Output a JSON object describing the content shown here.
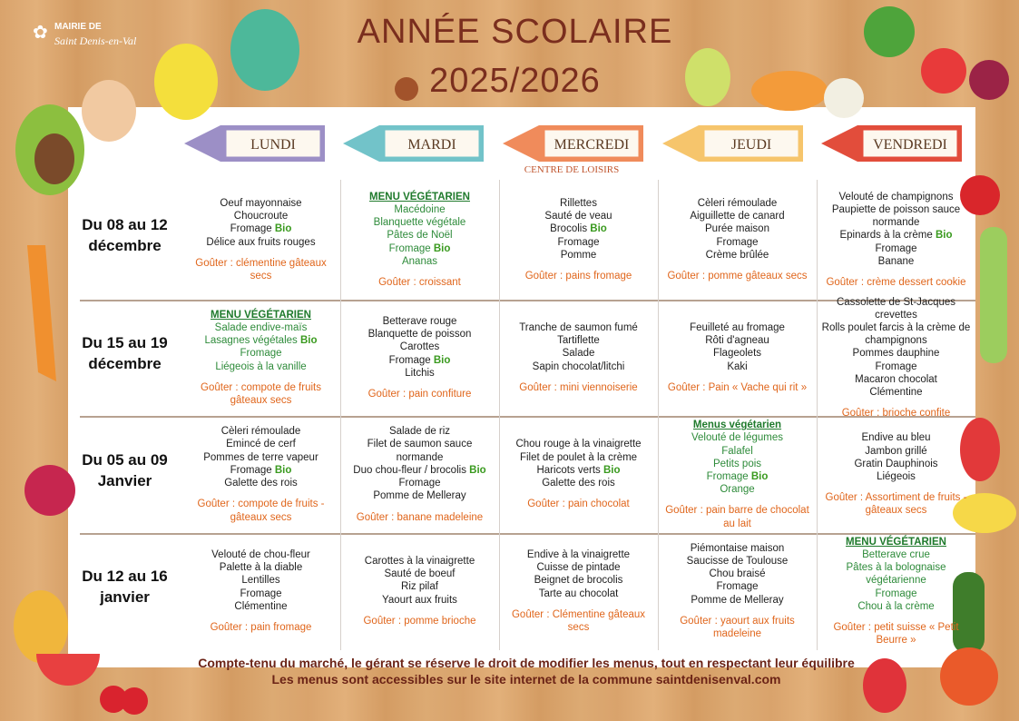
{
  "header": {
    "logo_line1": "MAIRIE DE",
    "logo_line2": "Saint Denis-en-Val",
    "title_line1": "ANNÉE SCOLAIRE",
    "title_line2": "2025/2026"
  },
  "days": [
    {
      "label": "LUNDI",
      "color": "#9c8fc6"
    },
    {
      "label": "MARDI",
      "color": "#72c3c9"
    },
    {
      "label": "MERCREDI",
      "color": "#f08b5b"
    },
    {
      "label": "JEUDI",
      "color": "#f6c56c"
    },
    {
      "label": "VENDREDI",
      "color": "#e24d3b"
    }
  ],
  "wednesday_note": "CENTRE DE LOISIRS",
  "weeks": [
    {
      "label_line1": "Du 08 au 12",
      "label_line2": "décembre",
      "cells": [
        {
          "items": [
            "Oeuf mayonnaise",
            "Choucroute",
            {
              "text": "Fromage",
              "bio": "Bio"
            },
            "Délice aux fruits rouges"
          ],
          "gouter": "Goûter : clémentine gâteaux secs"
        },
        {
          "vegetarian": true,
          "heading": "MENU VÉGÉTARIEN",
          "items": [
            "Macédoine",
            "Blanquette végétale",
            "Pâtes de Noël",
            {
              "text": "Fromage",
              "bio": "Bio"
            },
            "Ananas"
          ],
          "gouter": "Goûter : croissant"
        },
        {
          "items": [
            "Rillettes",
            "Sauté de veau",
            {
              "text": "Brocolis",
              "bio": "Bio"
            },
            "Fromage",
            "Pomme"
          ],
          "gouter": "Goûter : pains fromage"
        },
        {
          "items": [
            "Cèleri rémoulade",
            "Aiguillette de canard",
            "Purée maison",
            "Fromage",
            "Crème brûlée"
          ],
          "gouter": "Goûter : pomme gâteaux secs"
        },
        {
          "items": [
            "Velouté de champignons",
            "Paupiette de poisson sauce normande",
            {
              "text": "Epinards à la crème",
              "bio": "Bio"
            },
            "Fromage",
            "Banane"
          ],
          "gouter": "Goûter : crème dessert cookie"
        }
      ]
    },
    {
      "label_line1": "Du 15 au 19",
      "label_line2": "décembre",
      "cells": [
        {
          "vegetarian": true,
          "heading": "MENU VÉGÉTARIEN",
          "items": [
            "Salade endive-maïs",
            {
              "text": "Lasagnes végétales",
              "bio": "Bio"
            },
            "Fromage",
            "Liégeois à la vanille"
          ],
          "gouter": "Goûter : compote de fruits gâteaux secs"
        },
        {
          "items": [
            "Betterave rouge",
            "Blanquette de poisson",
            "Carottes",
            {
              "text": "Fromage",
              "bio": "Bio"
            },
            "Litchis"
          ],
          "gouter": "Goûter : pain confiture"
        },
        {
          "items": [
            "Tranche de saumon fumé",
            "Tartiflette",
            "Salade",
            "Sapin chocolat/litchi"
          ],
          "gouter": "Goûter : mini viennoiserie"
        },
        {
          "items": [
            "Feuilleté au fromage",
            "Rôti d'agneau",
            "Flageolets",
            "Kaki"
          ],
          "gouter": "Goûter : Pain « Vache qui rit »"
        },
        {
          "items": [
            "Cassolette de St-Jacques crevettes",
            "Rolls poulet farcis à la crème de champignons",
            "Pommes dauphine",
            "Fromage",
            "Macaron chocolat",
            "Clémentine"
          ],
          "gouter": "Goûter : brioche confite"
        }
      ]
    },
    {
      "label_line1": "Du 05 au 09",
      "label_line2": "Janvier",
      "cells": [
        {
          "items": [
            "Cèleri rémoulade",
            "Emincé de cerf",
            "Pommes de terre vapeur",
            {
              "text": "Fromage",
              "bio": "Bio"
            },
            "Galette des rois"
          ],
          "gouter": "Goûter : compote de fruits - gâteaux secs"
        },
        {
          "items": [
            "Salade de riz",
            "Filet de saumon sauce normande",
            {
              "text": "Duo chou-fleur / brocolis",
              "bio": "Bio"
            },
            "Fromage",
            "Pomme de Melleray"
          ],
          "gouter": "Goûter : banane madeleine"
        },
        {
          "items": [
            "Chou rouge à la vinaigrette",
            "Filet de poulet à la crème",
            {
              "text": "Haricots verts",
              "bio": "Bio"
            },
            "Galette des rois"
          ],
          "gouter": "Goûter : pain chocolat"
        },
        {
          "vegetarian": true,
          "heading": "Menus végétarien",
          "items": [
            "Velouté de légumes",
            "Falafel",
            "Petits pois",
            {
              "text": "Fromage",
              "bio": "Bio"
            },
            "Orange"
          ],
          "gouter": "Goûter : pain barre de chocolat au lait"
        },
        {
          "items": [
            "Endive au bleu",
            "Jambon grillé",
            "Gratin Dauphinois",
            "Liégeois"
          ],
          "gouter": "Goûter : Assortiment de fruits - gâteaux secs"
        }
      ]
    },
    {
      "label_line1": "Du 12 au 16",
      "label_line2": "janvier",
      "cells": [
        {
          "items": [
            "Velouté de chou-fleur",
            "Palette à la diable",
            "Lentilles",
            "Fromage",
            "Clémentine"
          ],
          "gouter": "Goûter : pain fromage"
        },
        {
          "items": [
            "Carottes à la vinaigrette",
            "Sauté de boeuf",
            "Riz pilaf",
            "Yaourt aux fruits"
          ],
          "gouter": "Goûter : pomme brioche"
        },
        {
          "items": [
            "Endive à la vinaigrette",
            "Cuisse de pintade",
            "Beignet de brocolis",
            "Tarte au chocolat"
          ],
          "gouter": "Goûter : Clémentine gâteaux secs"
        },
        {
          "items": [
            "Piémontaise maison",
            "Saucisse de Toulouse",
            "Chou braisé",
            "Fromage",
            "Pomme de Melleray"
          ],
          "gouter": "Goûter : yaourt aux fruits madeleine"
        },
        {
          "vegetarian": true,
          "heading": "MENU VÉGÉTARIEN",
          "items": [
            "Betterave crue",
            "Pâtes à la bolognaise végétarienne",
            "Fromage",
            "Chou à la crème"
          ],
          "gouter": "Goûter : petit suisse « Petit Beurre »"
        }
      ]
    }
  ],
  "footer": {
    "line1": "Compte-tenu du marché, le gérant se réserve le droit de modifier les menus, tout en respectant leur équilibre",
    "line2": "Les menus sont accessibles sur le site internet de la commune saintdenisenval.com"
  }
}
